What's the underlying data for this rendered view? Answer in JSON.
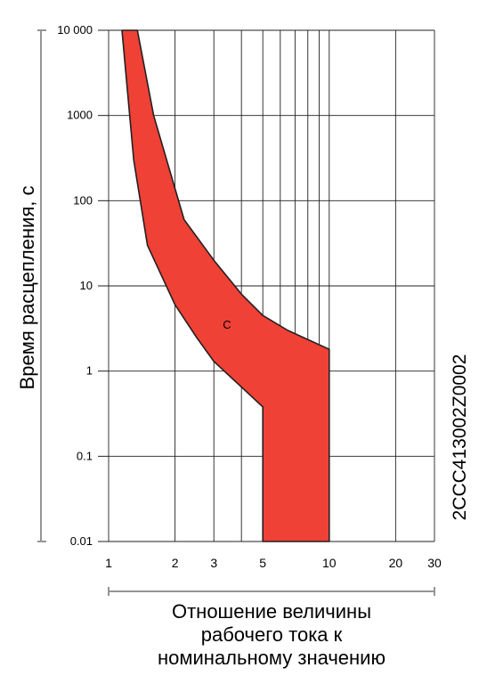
{
  "chart_data": {
    "type": "area",
    "title": "",
    "ylabel": "Время расцепления, с",
    "xlabel": [
      "Отношение величины",
      "рабочего тока к",
      "номинальному значению"
    ],
    "x_scale": "log",
    "y_scale": "log",
    "xlim": [
      1,
      30
    ],
    "ylim": [
      0.01,
      10000
    ],
    "x_ticks": [
      1,
      2,
      3,
      5,
      10,
      20,
      30
    ],
    "x_tick_labels": [
      "1",
      "2",
      "3",
      "5",
      "10",
      "20",
      "30"
    ],
    "x_grid": [
      1,
      2,
      3,
      4,
      5,
      6,
      7,
      8,
      9,
      10,
      20,
      30
    ],
    "y_ticks": [
      0.01,
      0.1,
      1,
      10,
      100,
      1000,
      10000
    ],
    "y_tick_labels": [
      "0.01",
      "0.1",
      "1",
      "10",
      "100",
      "1000",
      "10 000"
    ],
    "grid": true,
    "band_color": "#ef4136",
    "series": [
      {
        "name": "C",
        "upper": [
          [
            1.35,
            10000
          ],
          [
            1.6,
            1000
          ],
          [
            2.2,
            60
          ],
          [
            3,
            20
          ],
          [
            4,
            8
          ],
          [
            5,
            4.5
          ],
          [
            6.5,
            3
          ],
          [
            10,
            1.8
          ],
          [
            10,
            0.01
          ]
        ],
        "lower": [
          [
            1.15,
            10000
          ],
          [
            1.3,
            300
          ],
          [
            1.5,
            30
          ],
          [
            2,
            6
          ],
          [
            2.5,
            2.5
          ],
          [
            3,
            1.3
          ],
          [
            4,
            0.65
          ],
          [
            5,
            0.38
          ],
          [
            5,
            0.01
          ]
        ]
      }
    ],
    "band_label": "C"
  },
  "side_code": "2CCC413002Z0002"
}
